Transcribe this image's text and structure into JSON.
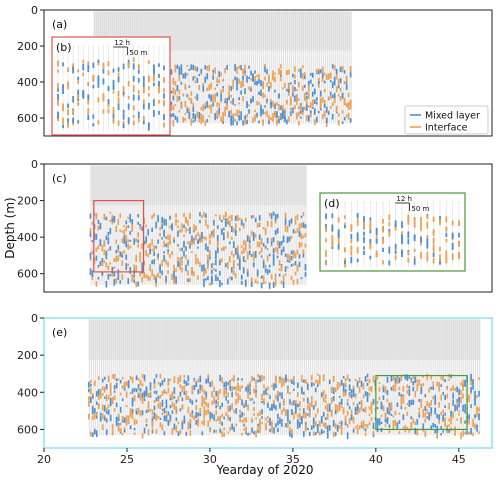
{
  "chart_data": [
    {
      "panel": "(a)",
      "type": "scatter",
      "xlabel": "Yearday of 2020",
      "ylabel": "Depth (m)",
      "xlim": [
        20,
        47
      ],
      "ylim": [
        700,
        0
      ],
      "ylim_ticks": [
        0,
        200,
        400,
        600
      ],
      "sampling_window": [
        23,
        38.5
      ],
      "inset": {
        "label": "(b)",
        "box_color": "#e8504a",
        "scale_time": "12 h",
        "scale_depth": "50 m"
      },
      "legend": {
        "position": "bottom-right",
        "entries": [
          {
            "name": "Mixed layer",
            "color": "#4a90d9"
          },
          {
            "name": "Interface",
            "color": "#f0a050"
          }
        ]
      },
      "series": [
        {
          "name": "Mixed layer",
          "depth_range": [
            300,
            620
          ]
        },
        {
          "name": "Interface",
          "depth_range": [
            280,
            640
          ]
        }
      ]
    },
    {
      "panel": "(c)",
      "type": "scatter",
      "xlabel": "Yearday of 2020",
      "ylabel": "Depth (m)",
      "xlim": [
        20,
        47
      ],
      "ylim": [
        700,
        0
      ],
      "ylim_ticks": [
        0,
        200,
        400,
        600
      ],
      "sampling_window": [
        22.8,
        35.8
      ],
      "highlight_box": {
        "x": [
          23,
          26
        ],
        "y": [
          200,
          590
        ],
        "color": "#e8504a"
      },
      "inset": {
        "label": "(d)",
        "box_color": "#4a9a3a",
        "scale_time": "12 h",
        "scale_depth": "50 m"
      },
      "series": [
        {
          "name": "Mixed layer",
          "depth_range": [
            260,
            650
          ]
        },
        {
          "name": "Interface",
          "depth_range": [
            260,
            660
          ]
        }
      ]
    },
    {
      "panel": "(e)",
      "type": "scatter",
      "xlabel": "Yearday of 2020",
      "ylabel": "Depth (m)",
      "xlim": [
        20,
        47
      ],
      "ylim": [
        700,
        0
      ],
      "ylim_ticks": [
        0,
        200,
        400,
        600
      ],
      "xticks": [
        20,
        25,
        30,
        35,
        40,
        45
      ],
      "frame_color": "#8ee3f0",
      "sampling_window": [
        22.7,
        46.3
      ],
      "highlight_box": {
        "x": [
          40,
          45.5
        ],
        "y": [
          310,
          600
        ],
        "color": "#4a9a3a"
      },
      "series": [
        {
          "name": "Mixed layer",
          "depth_range": [
            300,
            620
          ]
        },
        {
          "name": "Interface",
          "depth_range": [
            280,
            660
          ]
        }
      ]
    }
  ],
  "colors": {
    "mixed": "#4a90d9",
    "interface": "#f0a050",
    "grey": "#c8c8c8"
  }
}
